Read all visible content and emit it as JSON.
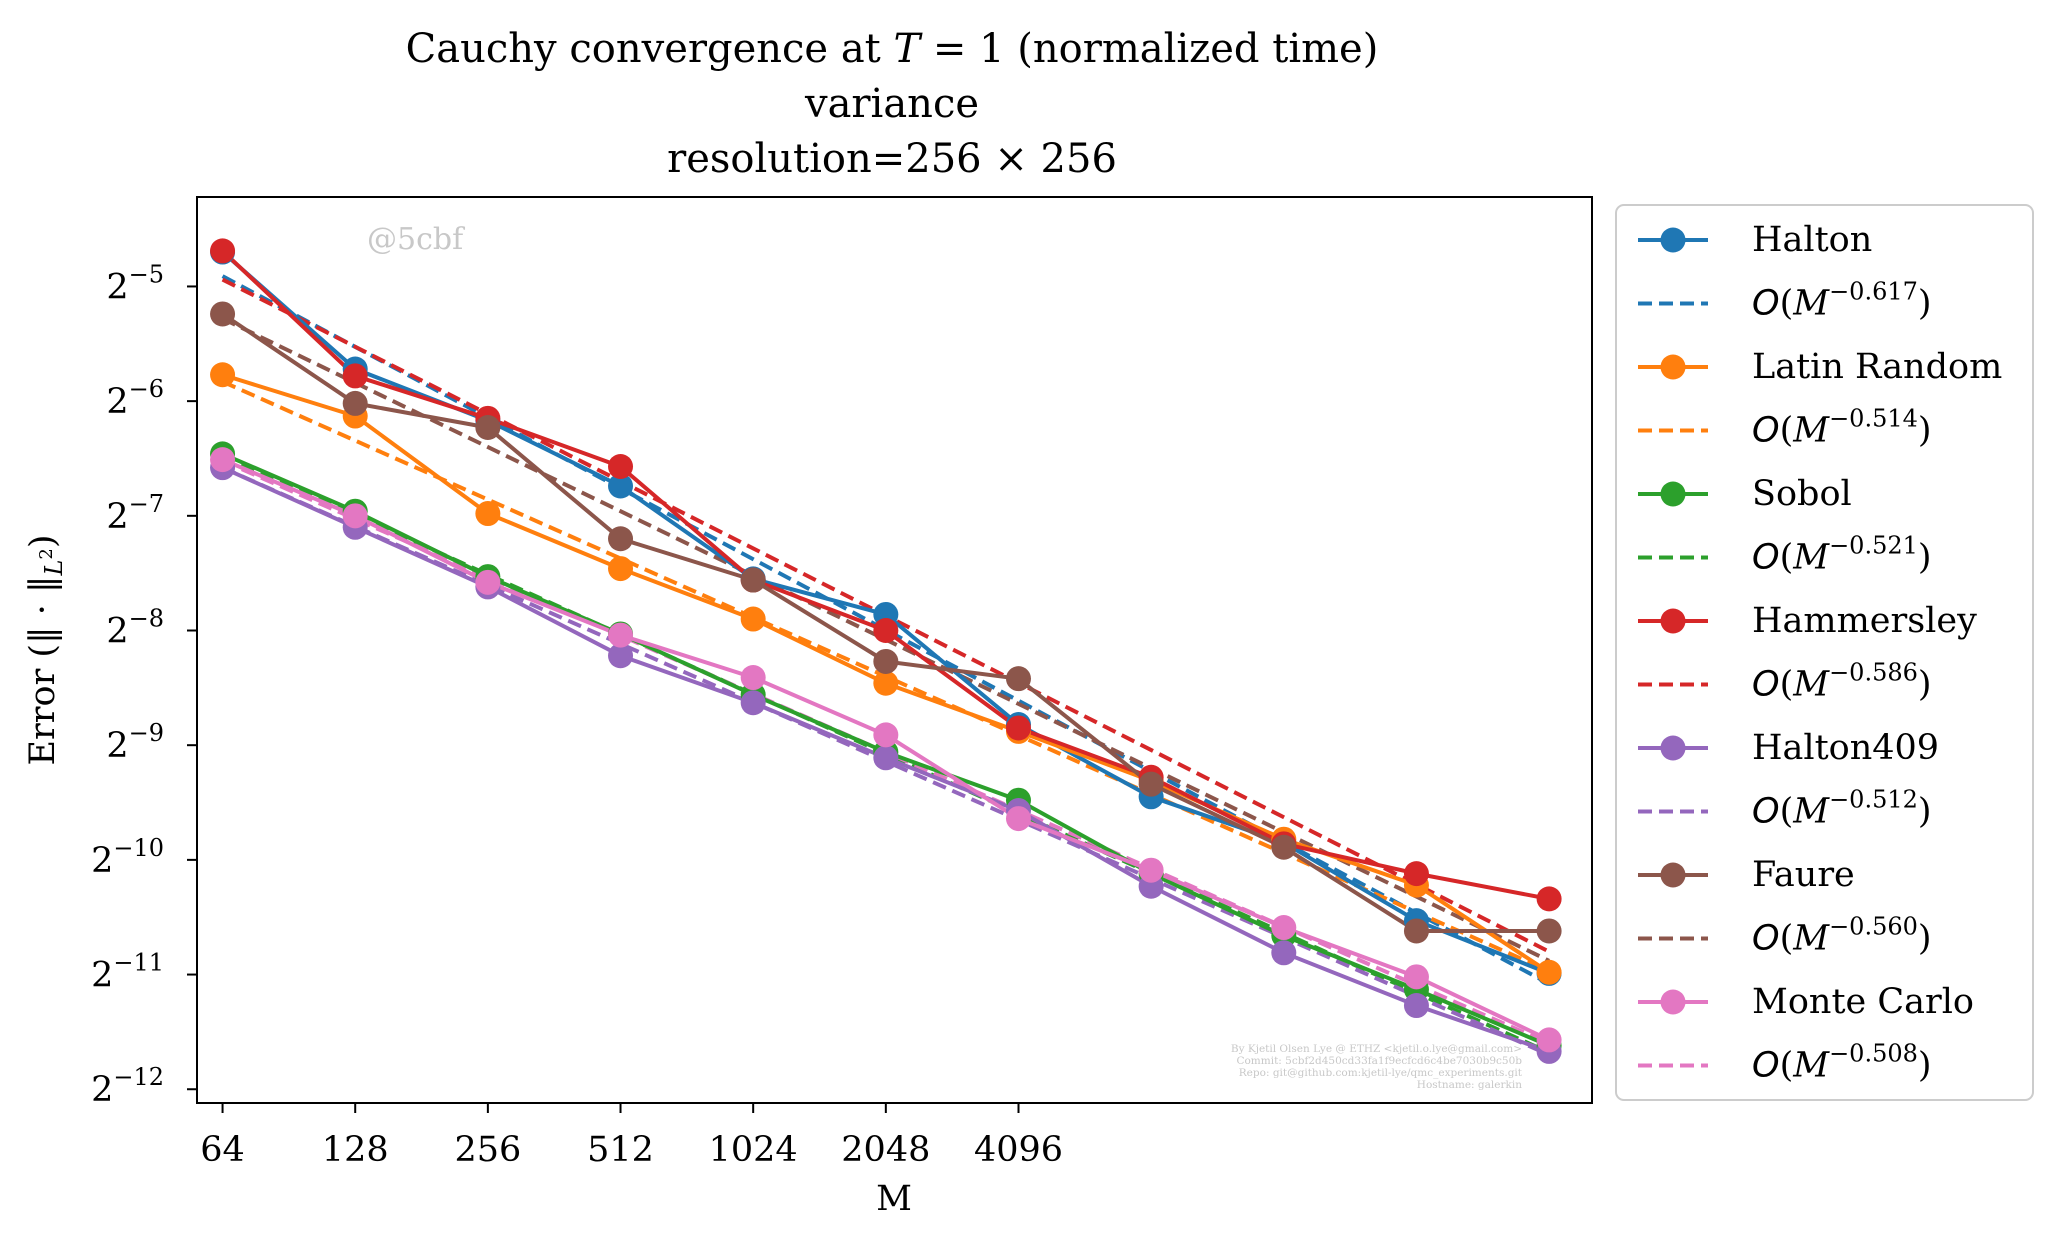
{
  "chart_data": {
    "type": "line",
    "title": [
      "Cauchy convergence at T = 1 (normalized time)",
      "variance",
      "resolution=256 × 256"
    ],
    "xlabel": "M",
    "ylabel": "Error (‖·‖_{L²})",
    "x_scale": "log2",
    "y_scale": "log2",
    "x": [
      64,
      128,
      256,
      512,
      1024,
      2048,
      4096,
      8192,
      16384,
      32768,
      65536
    ],
    "x_tick_labels": [
      "64",
      "128",
      "256",
      "512",
      "1024",
      "2048",
      "4096"
    ],
    "y_tick_exponents": [
      "-5",
      "-6",
      "-7",
      "-8",
      "-9",
      "-10",
      "-11",
      "-12"
    ],
    "xlim": [
      56,
      82000
    ],
    "ylim_log2": [
      -12.12,
      -4.22
    ],
    "legend_position": "outside-right",
    "watermark": "@5cbf",
    "footnote": [
      "By Kjetil Olsen Lye @ ETHZ <kjetil.o.lye@gmail.com>",
      "Commit: 5cbf2d450cd33fa1f9ecfcd6c4be7030b9c50b",
      "Repo: git@github.com:kjetil-lye/qmc_experiments.git",
      "Hostname: galerkin"
    ],
    "series": [
      {
        "name": "Halton",
        "color": "#1f77b4",
        "fit_label": "O(M^{-0.617})",
        "rate": "-0.617",
        "log2_values": [
          -4.7,
          -5.72,
          -6.17,
          -6.74,
          -7.55,
          -7.86,
          -8.82,
          -9.45,
          -9.85,
          -10.53,
          -10.99
        ],
        "fit_log2": [
          -4.91,
          -11.08
        ]
      },
      {
        "name": "Latin Random",
        "color": "#ff7f0e",
        "fit_label": "O(M^{-0.514})",
        "rate": "-0.514",
        "log2_values": [
          -5.77,
          -6.13,
          -6.98,
          -7.46,
          -7.9,
          -8.46,
          -8.88,
          -9.31,
          -9.82,
          -10.22,
          -10.98
        ],
        "fit_log2": [
          -5.83,
          -10.97
        ]
      },
      {
        "name": "Sobol",
        "color": "#2ca02c",
        "fit_label": "O(M^{-0.521})",
        "rate": "-0.521",
        "log2_values": [
          -6.46,
          -6.96,
          -7.53,
          -8.03,
          -8.56,
          -9.06,
          -9.48,
          -10.12,
          -10.66,
          -11.13,
          -11.62
        ],
        "fit_log2": [
          -6.47,
          -11.68
        ]
      },
      {
        "name": "Hammersley",
        "color": "#d62728",
        "fit_label": "O(M^{-0.586})",
        "rate": "-0.586",
        "log2_values": [
          -4.69,
          -5.78,
          -6.15,
          -6.57,
          -7.56,
          -8.0,
          -8.85,
          -9.28,
          -9.86,
          -10.12,
          -10.34
        ],
        "fit_log2": [
          -4.94,
          -10.8
        ]
      },
      {
        "name": "Halton409",
        "color": "#9467bd",
        "fit_label": "O(M^{-0.512})",
        "rate": "-0.512",
        "log2_values": [
          -6.58,
          -7.1,
          -7.62,
          -8.22,
          -8.63,
          -9.11,
          -9.57,
          -10.23,
          -10.81,
          -11.27,
          -11.67
        ],
        "fit_log2": [
          -6.58,
          -11.7
        ]
      },
      {
        "name": "Faure",
        "color": "#8c564b",
        "fit_label": "O(M^{-0.560})",
        "rate": "-0.560",
        "log2_values": [
          -5.24,
          -6.02,
          -6.23,
          -7.2,
          -7.56,
          -8.27,
          -8.42,
          -9.34,
          -9.89,
          -10.62,
          -10.62
        ],
        "fit_log2": [
          -5.28,
          -10.88
        ]
      },
      {
        "name": "Monte Carlo",
        "color": "#e377c2",
        "fit_label": "O(M^{-0.508})",
        "rate": "-0.508",
        "log2_values": [
          -6.51,
          -7.0,
          -7.58,
          -8.04,
          -8.41,
          -8.91,
          -9.64,
          -10.09,
          -10.59,
          -11.02,
          -11.57
        ],
        "fit_log2": [
          -6.52,
          -11.6
        ]
      }
    ]
  }
}
